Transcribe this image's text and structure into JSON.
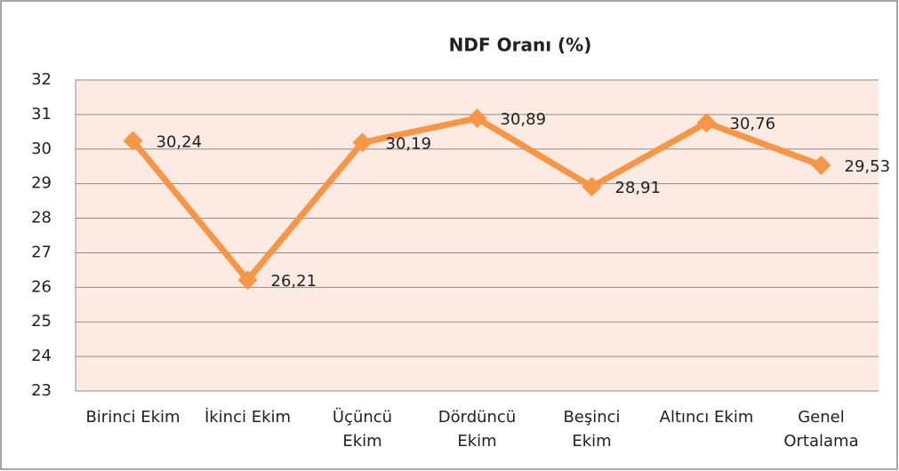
{
  "chart_data": {
    "type": "line",
    "title": "NDF Oranı (%)",
    "categories": [
      "Birinci Ekim",
      "İkinci Ekim",
      "Üçüncü Ekim",
      "Dördüncü Ekim",
      "Beşinci Ekim",
      "Altıncı Ekim",
      "Genel Ortalama"
    ],
    "values": [
      30.24,
      26.21,
      30.19,
      30.89,
      28.91,
      30.76,
      29.53
    ],
    "value_labels": [
      "30,24",
      "26,21",
      "30,19",
      "30,89",
      "28,91",
      "30,76",
      "29,53"
    ],
    "color": "#f79646",
    "ylim": [
      23,
      32
    ],
    "yticks": [
      23,
      24,
      25,
      26,
      27,
      28,
      29,
      30,
      31,
      32
    ],
    "grid": true
  }
}
